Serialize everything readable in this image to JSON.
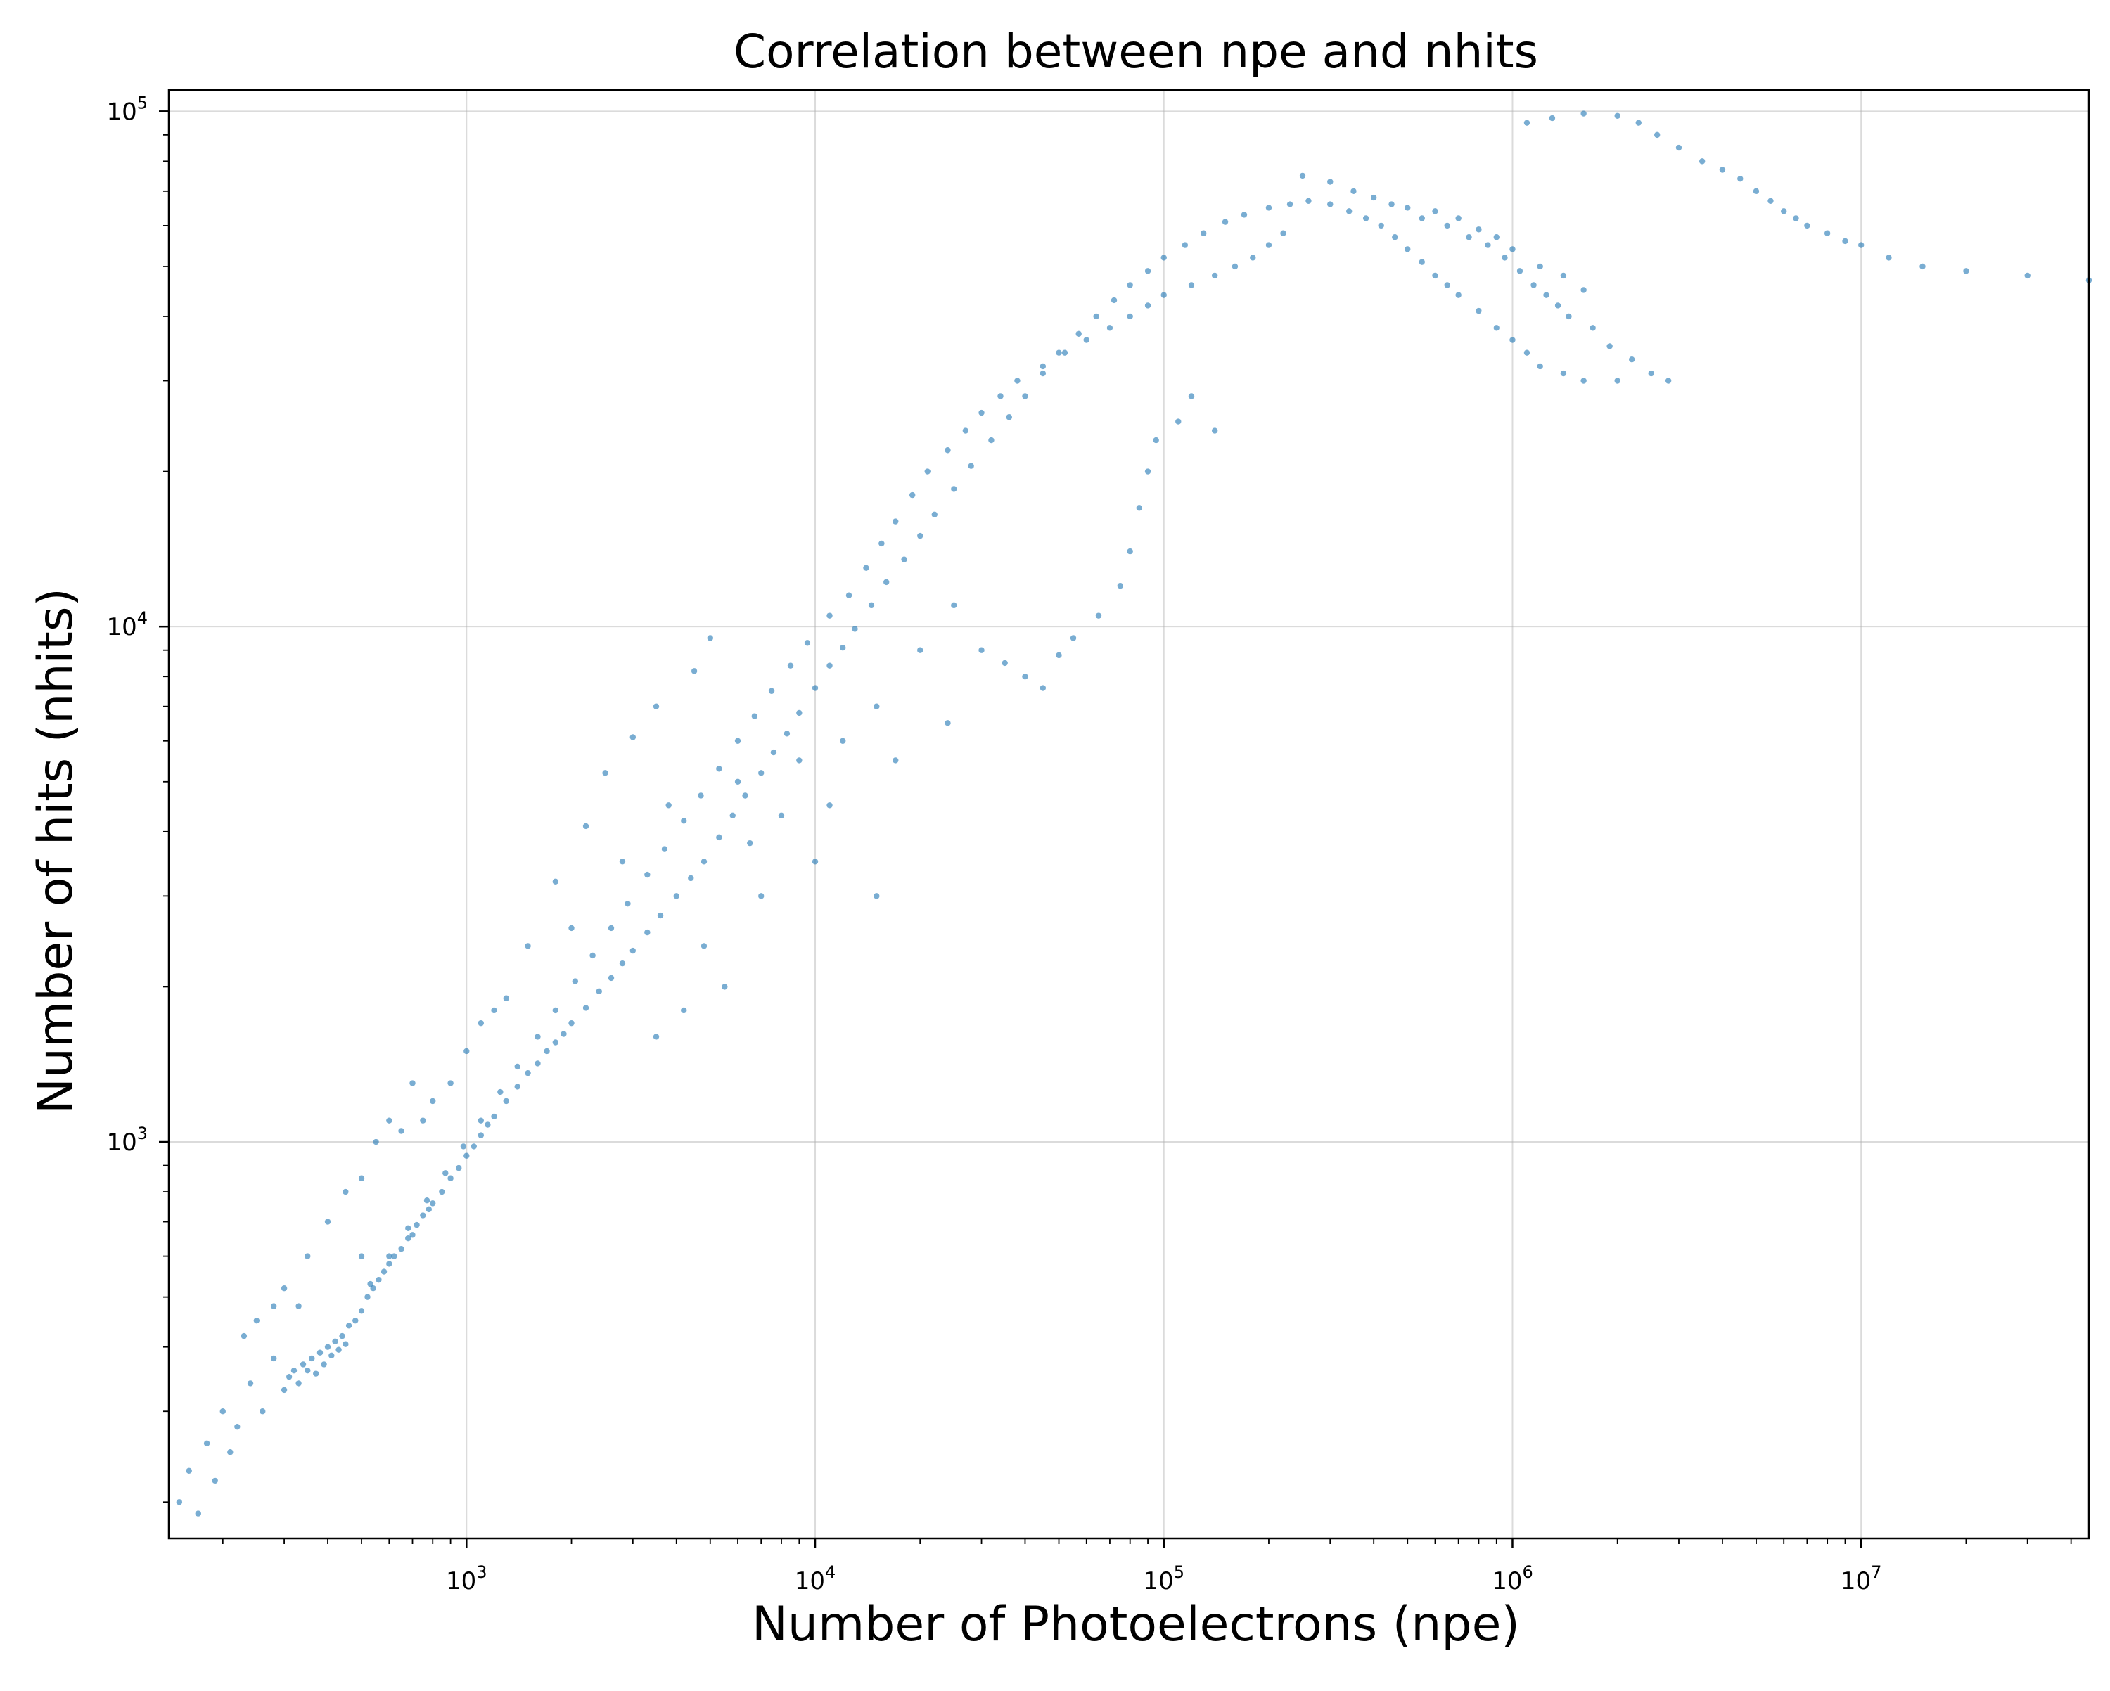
{
  "chart_data": {
    "type": "scatter",
    "title": "Correlation between npe and nhits",
    "xlabel": "Number of Photoelectrons (npe)",
    "ylabel": "Number of hits (nhits)",
    "x_scale": "log",
    "y_scale": "log",
    "xlim": [
      140,
      45000000
    ],
    "ylim": [
      170,
      110000
    ],
    "grid": true,
    "legend": "none",
    "x_ticks": [
      {
        "value": 1000,
        "base": "10",
        "exp": "3"
      },
      {
        "value": 10000,
        "base": "10",
        "exp": "4"
      },
      {
        "value": 100000,
        "base": "10",
        "exp": "5"
      },
      {
        "value": 1000000,
        "base": "10",
        "exp": "6"
      },
      {
        "value": 10000000,
        "base": "10",
        "exp": "7"
      }
    ],
    "y_ticks": [
      {
        "value": 1000,
        "base": "10",
        "exp": "3"
      },
      {
        "value": 10000,
        "base": "10",
        "exp": "4"
      },
      {
        "value": 100000,
        "base": "10",
        "exp": "5"
      }
    ],
    "marker_color": "#1f77b4",
    "marker_alpha": 0.6,
    "series": [
      {
        "points": [
          [
            150,
            200
          ],
          [
            160,
            230
          ],
          [
            170,
            190
          ],
          [
            180,
            260
          ],
          [
            190,
            220
          ],
          [
            200,
            300
          ],
          [
            210,
            250
          ],
          [
            220,
            280
          ],
          [
            240,
            340
          ],
          [
            260,
            300
          ],
          [
            280,
            380
          ],
          [
            300,
            330
          ],
          [
            310,
            350
          ],
          [
            320,
            360
          ],
          [
            330,
            340
          ],
          [
            340,
            370
          ],
          [
            350,
            360
          ],
          [
            360,
            380
          ],
          [
            370,
            355
          ],
          [
            380,
            390
          ],
          [
            390,
            370
          ],
          [
            400,
            400
          ],
          [
            410,
            385
          ],
          [
            420,
            410
          ],
          [
            430,
            395
          ],
          [
            440,
            420
          ],
          [
            450,
            405
          ],
          [
            460,
            440
          ],
          [
            480,
            450
          ],
          [
            500,
            470
          ],
          [
            520,
            500
          ],
          [
            540,
            520
          ],
          [
            560,
            540
          ],
          [
            580,
            560
          ],
          [
            600,
            580
          ],
          [
            620,
            600
          ],
          [
            650,
            620
          ],
          [
            680,
            650
          ],
          [
            700,
            660
          ],
          [
            720,
            690
          ],
          [
            750,
            720
          ],
          [
            780,
            740
          ],
          [
            800,
            760
          ],
          [
            850,
            800
          ],
          [
            900,
            850
          ],
          [
            950,
            890
          ],
          [
            1000,
            940
          ],
          [
            1050,
            980
          ],
          [
            1100,
            1030
          ],
          [
            1150,
            1080
          ],
          [
            1200,
            1120
          ],
          [
            1300,
            1200
          ],
          [
            1400,
            1280
          ],
          [
            1500,
            1360
          ],
          [
            1600,
            1420
          ],
          [
            1700,
            1500
          ],
          [
            1800,
            1560
          ],
          [
            1900,
            1620
          ],
          [
            2000,
            1700
          ],
          [
            2200,
            1820
          ],
          [
            2400,
            1960
          ],
          [
            2600,
            2080
          ],
          [
            2800,
            2220
          ],
          [
            3000,
            2350
          ],
          [
            3300,
            2550
          ],
          [
            3600,
            2750
          ],
          [
            4000,
            3000
          ],
          [
            4400,
            3250
          ],
          [
            4800,
            3500
          ],
          [
            5300,
            3900
          ],
          [
            5800,
            4300
          ],
          [
            6300,
            4700
          ],
          [
            7000,
            5200
          ],
          [
            7600,
            5700
          ],
          [
            8300,
            6200
          ],
          [
            9000,
            6800
          ],
          [
            10000,
            7600
          ],
          [
            11000,
            8400
          ],
          [
            12000,
            9100
          ],
          [
            13000,
            9900
          ],
          [
            14500,
            11000
          ],
          [
            16000,
            12200
          ],
          [
            18000,
            13500
          ],
          [
            20000,
            15000
          ],
          [
            22000,
            16500
          ],
          [
            25000,
            18500
          ],
          [
            28000,
            20500
          ],
          [
            32000,
            23000
          ],
          [
            36000,
            25500
          ],
          [
            40000,
            28000
          ],
          [
            45000,
            31000
          ],
          [
            50000,
            34000
          ],
          [
            57000,
            37000
          ],
          [
            64000,
            40000
          ],
          [
            72000,
            43000
          ],
          [
            80000,
            46000
          ],
          [
            90000,
            49000
          ],
          [
            100000,
            52000
          ],
          [
            115000,
            55000
          ],
          [
            130000,
            58000
          ],
          [
            150000,
            61000
          ],
          [
            170000,
            63000
          ],
          [
            200000,
            65000
          ],
          [
            230000,
            66000
          ],
          [
            260000,
            67000
          ],
          [
            300000,
            66000
          ],
          [
            340000,
            64000
          ],
          [
            380000,
            62000
          ],
          [
            420000,
            60000
          ],
          [
            460000,
            57000
          ],
          [
            500000,
            54000
          ],
          [
            550000,
            51000
          ],
          [
            600000,
            48000
          ],
          [
            650000,
            46000
          ],
          [
            700000,
            44000
          ],
          [
            800000,
            41000
          ],
          [
            900000,
            38000
          ],
          [
            1000000,
            36000
          ],
          [
            1100000,
            34000
          ],
          [
            1200000,
            32000
          ],
          [
            1400000,
            31000
          ],
          [
            1600000,
            30000
          ],
          [
            2000000,
            30000
          ],
          [
            500000,
            65000
          ],
          [
            600000,
            64000
          ],
          [
            700000,
            62000
          ],
          [
            800000,
            59000
          ],
          [
            900000,
            57000
          ],
          [
            1000000,
            54000
          ],
          [
            1200000,
            50000
          ],
          [
            1400000,
            48000
          ],
          [
            1600000,
            45000
          ],
          [
            1100000,
            95000
          ],
          [
            1300000,
            97000
          ],
          [
            1600000,
            99000
          ],
          [
            2000000,
            98000
          ],
          [
            2300000,
            95000
          ],
          [
            2600000,
            90000
          ],
          [
            3000000,
            85000
          ],
          [
            3500000,
            80000
          ],
          [
            4000000,
            77000
          ],
          [
            4500000,
            74000
          ],
          [
            5000000,
            70000
          ],
          [
            5500000,
            67000
          ],
          [
            6000000,
            64000
          ],
          [
            6500000,
            62000
          ],
          [
            7000000,
            60000
          ],
          [
            8000000,
            58000
          ],
          [
            9000000,
            56000
          ],
          [
            10000000,
            55000
          ],
          [
            12000000,
            52000
          ],
          [
            15000000,
            50000
          ],
          [
            20000000,
            49000
          ],
          [
            30000000,
            48000
          ],
          [
            45000000,
            47000
          ],
          [
            1500,
            2400
          ],
          [
            1800,
            3200
          ],
          [
            2200,
            4100
          ],
          [
            2500,
            5200
          ],
          [
            3000,
            6100
          ],
          [
            3500,
            7000
          ],
          [
            4500,
            8200
          ],
          [
            5000,
            9500
          ],
          [
            1200,
            1800
          ],
          [
            2000,
            2600
          ],
          [
            2800,
            3500
          ],
          [
            3800,
            4500
          ],
          [
            6000,
            5000
          ],
          [
            9000,
            5500
          ],
          [
            12000,
            6000
          ],
          [
            15000,
            7000
          ],
          [
            20000,
            9000
          ],
          [
            25000,
            11000
          ],
          [
            30000,
            9000
          ],
          [
            35000,
            8500
          ],
          [
            40000,
            8000
          ],
          [
            45000,
            7600
          ],
          [
            50000,
            8800
          ],
          [
            55000,
            9500
          ],
          [
            65000,
            10500
          ],
          [
            75000,
            12000
          ],
          [
            80000,
            14000
          ],
          [
            85000,
            17000
          ],
          [
            90000,
            20000
          ],
          [
            95000,
            23000
          ],
          [
            110000,
            25000
          ],
          [
            120000,
            28000
          ],
          [
            140000,
            24000
          ],
          [
            15000,
            3000
          ],
          [
            10000,
            3500
          ],
          [
            8000,
            4300
          ],
          [
            6500,
            3800
          ],
          [
            4800,
            2400
          ],
          [
            5500,
            2000
          ],
          [
            4200,
            1800
          ],
          [
            3500,
            1600
          ],
          [
            7000,
            3000
          ],
          [
            11000,
            4500
          ],
          [
            17000,
            5500
          ],
          [
            24000,
            6500
          ],
          [
            550,
            1000
          ],
          [
            600,
            1100
          ],
          [
            650,
            1050
          ],
          [
            700,
            1300
          ],
          [
            750,
            1100
          ],
          [
            800,
            1200
          ],
          [
            900,
            1300
          ],
          [
            1000,
            1500
          ],
          [
            1100,
            1700
          ],
          [
            1300,
            1900
          ],
          [
            400,
            700
          ],
          [
            450,
            800
          ],
          [
            500,
            850
          ],
          [
            350,
            600
          ],
          [
            300,
            520
          ],
          [
            280,
            480
          ],
          [
            250,
            450
          ],
          [
            230,
            420
          ],
          [
            330,
            480
          ],
          [
            500,
            600
          ],
          [
            250000,
            75000
          ],
          [
            300000,
            73000
          ],
          [
            350000,
            70000
          ],
          [
            400000,
            68000
          ],
          [
            450000,
            66000
          ],
          [
            550000,
            62000
          ],
          [
            650000,
            60000
          ],
          [
            750000,
            57000
          ],
          [
            850000,
            55000
          ],
          [
            950000,
            52000
          ],
          [
            1050000,
            49000
          ],
          [
            1150000,
            46000
          ],
          [
            1250000,
            44000
          ],
          [
            1350000,
            42000
          ],
          [
            1450000,
            40000
          ],
          [
            1700000,
            38000
          ],
          [
            1900000,
            35000
          ],
          [
            2200000,
            33000
          ],
          [
            2500000,
            31000
          ],
          [
            2800000,
            30000
          ],
          [
            200000,
            55000
          ],
          [
            220000,
            58000
          ],
          [
            180000,
            52000
          ],
          [
            160000,
            50000
          ],
          [
            140000,
            48000
          ],
          [
            120000,
            46000
          ],
          [
            100000,
            44000
          ],
          [
            90000,
            42000
          ],
          [
            80000,
            40000
          ],
          [
            70000,
            38000
          ],
          [
            60000,
            36000
          ],
          [
            52000,
            34000
          ],
          [
            45000,
            32000
          ],
          [
            38000,
            30000
          ],
          [
            34000,
            28000
          ],
          [
            30000,
            26000
          ],
          [
            27000,
            24000
          ],
          [
            24000,
            22000
          ],
          [
            21000,
            20000
          ],
          [
            19000,
            18000
          ],
          [
            17000,
            16000
          ],
          [
            15500,
            14500
          ],
          [
            14000,
            13000
          ],
          [
            12500,
            11500
          ],
          [
            11000,
            10500
          ],
          [
            9500,
            9300
          ],
          [
            8500,
            8400
          ],
          [
            7500,
            7500
          ],
          [
            6700,
            6700
          ],
          [
            6000,
            6000
          ],
          [
            5300,
            5300
          ],
          [
            4700,
            4700
          ],
          [
            4200,
            4200
          ],
          [
            3700,
            3700
          ],
          [
            3300,
            3300
          ],
          [
            2900,
            2900
          ],
          [
            2600,
            2600
          ],
          [
            2300,
            2300
          ],
          [
            2050,
            2050
          ],
          [
            1800,
            1800
          ],
          [
            1600,
            1600
          ],
          [
            1400,
            1400
          ],
          [
            1250,
            1250
          ],
          [
            1100,
            1100
          ],
          [
            980,
            980
          ],
          [
            870,
            870
          ],
          [
            770,
            770
          ],
          [
            680,
            680
          ],
          [
            600,
            600
          ],
          [
            530,
            530
          ]
        ]
      }
    ]
  }
}
